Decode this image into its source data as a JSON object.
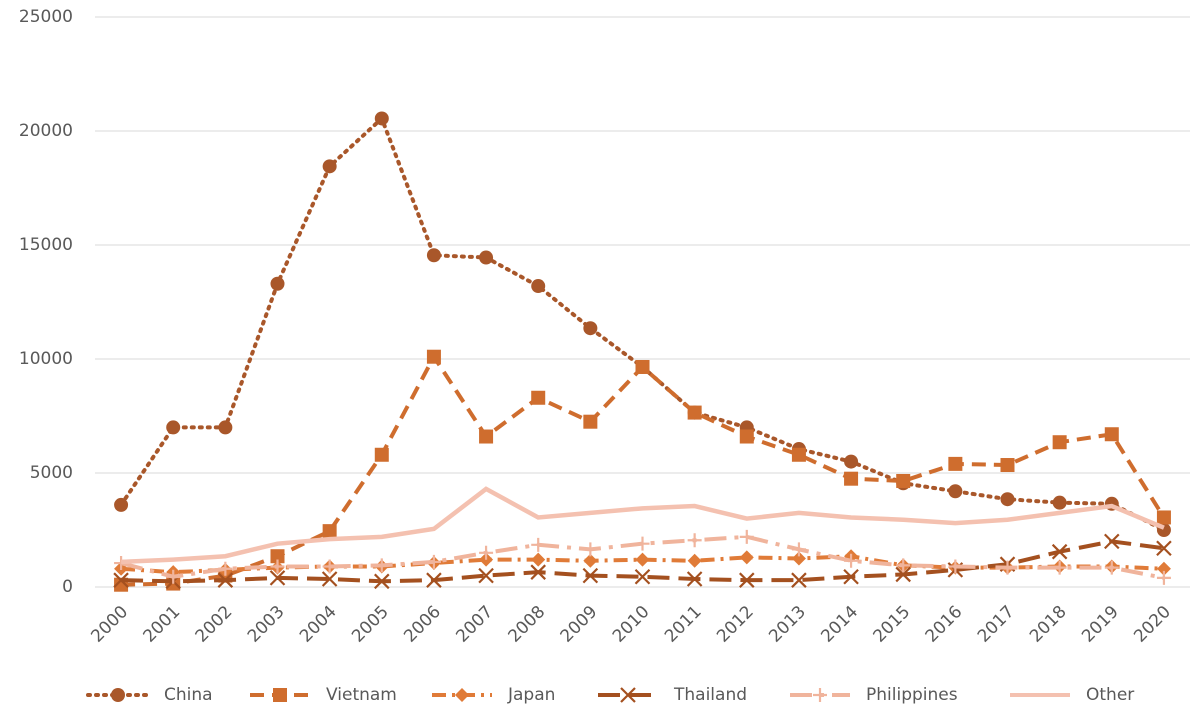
{
  "chart_data": {
    "type": "line",
    "categories": [
      "2000",
      "2001",
      "2002",
      "2003",
      "2004",
      "2005",
      "2006",
      "2007",
      "2008",
      "2009",
      "2010",
      "2011",
      "2012",
      "2013",
      "2014",
      "2015",
      "2016",
      "2017",
      "2018",
      "2019",
      "2020"
    ],
    "series": [
      {
        "name": "China",
        "color": "#a9572a",
        "marker": "circle",
        "dash": "dotted",
        "values": [
          3600,
          7000,
          7000,
          13300,
          18450,
          20550,
          14550,
          14450,
          13200,
          11350,
          9650,
          7650,
          7000,
          6050,
          5500,
          4550,
          4200,
          3850,
          3700,
          3650,
          2500
        ]
      },
      {
        "name": "Vietnam",
        "color": "#cf6d2e",
        "marker": "square",
        "dash": "dashed",
        "values": [
          100,
          150,
          500,
          1350,
          2450,
          5800,
          10100,
          6600,
          8300,
          7250,
          9650,
          7650,
          6600,
          5800,
          4750,
          4650,
          5400,
          5350,
          6350,
          6700,
          3050
        ]
      },
      {
        "name": "Japan",
        "color": "#e07b38",
        "marker": "diamond",
        "dash": "dashdot",
        "values": [
          800,
          650,
          750,
          850,
          900,
          900,
          1050,
          1200,
          1200,
          1150,
          1200,
          1150,
          1300,
          1250,
          1350,
          950,
          850,
          850,
          900,
          900,
          800
        ]
      },
      {
        "name": "Thailand",
        "color": "#a4501f",
        "marker": "x",
        "dash": "longdash",
        "values": [
          300,
          250,
          300,
          400,
          350,
          250,
          300,
          500,
          650,
          500,
          450,
          350,
          300,
          300,
          450,
          550,
          750,
          1000,
          1550,
          2000,
          1700
        ]
      },
      {
        "name": "Philippines",
        "color": "#f0b49c",
        "marker": "plus",
        "dash": "longdashdot",
        "values": [
          1050,
          450,
          800,
          900,
          900,
          950,
          1100,
          1500,
          1850,
          1650,
          1900,
          2050,
          2200,
          1650,
          1150,
          950,
          900,
          850,
          850,
          850,
          400
        ]
      },
      {
        "name": "Other",
        "color": "#f4c1b0",
        "marker": "none",
        "dash": "solid",
        "values": [
          1100,
          1200,
          1350,
          1900,
          2100,
          2200,
          2550,
          4300,
          3050,
          3250,
          3450,
          3550,
          3000,
          3250,
          3050,
          2950,
          2800,
          2950,
          3250,
          3550,
          2600
        ]
      }
    ],
    "ylim": [
      0,
      25000
    ],
    "yticks": [
      0,
      5000,
      10000,
      15000,
      20000,
      25000
    ],
    "grid": true,
    "legend": "bottom"
  }
}
